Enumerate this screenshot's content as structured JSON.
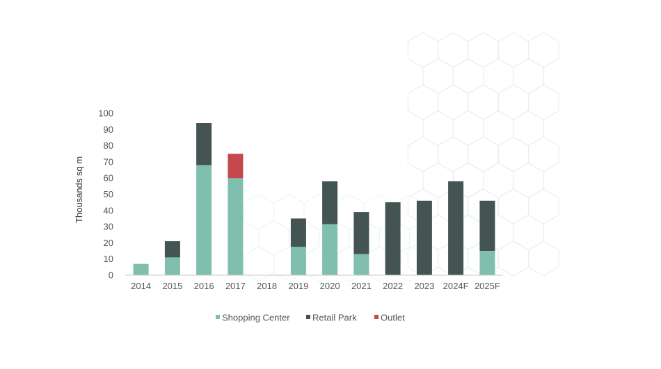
{
  "chart_data": {
    "type": "bar",
    "stacked": true,
    "title": "",
    "xlabel": "",
    "ylabel": "Thousands sq m",
    "ylim": [
      0,
      100
    ],
    "yticks": [
      0,
      10,
      20,
      30,
      40,
      50,
      60,
      70,
      80,
      90,
      100
    ],
    "grid": false,
    "legend_position": "bottom",
    "categories": [
      "2014",
      "2015",
      "2016",
      "2017",
      "2018",
      "2019",
      "2020",
      "2021",
      "2022",
      "2023",
      "2024F",
      "2025F"
    ],
    "series": [
      {
        "name": "Shopping Center",
        "color": "#80bfae",
        "values": [
          7,
          11,
          68,
          60,
          0,
          17.5,
          31.5,
          13,
          0,
          0,
          0,
          15
        ]
      },
      {
        "name": "Retail Park",
        "color": "#435453",
        "values": [
          0,
          10,
          26,
          0,
          0,
          17.5,
          26.5,
          26,
          45,
          46,
          58,
          31
        ]
      },
      {
        "name": "Outlet",
        "color": "#c4484c",
        "values": [
          0,
          0,
          0,
          15,
          0,
          0,
          0,
          0,
          0,
          0,
          0,
          0
        ]
      }
    ]
  },
  "background": {
    "pattern": "hexagon-outline",
    "color": "#e3f2ec"
  }
}
